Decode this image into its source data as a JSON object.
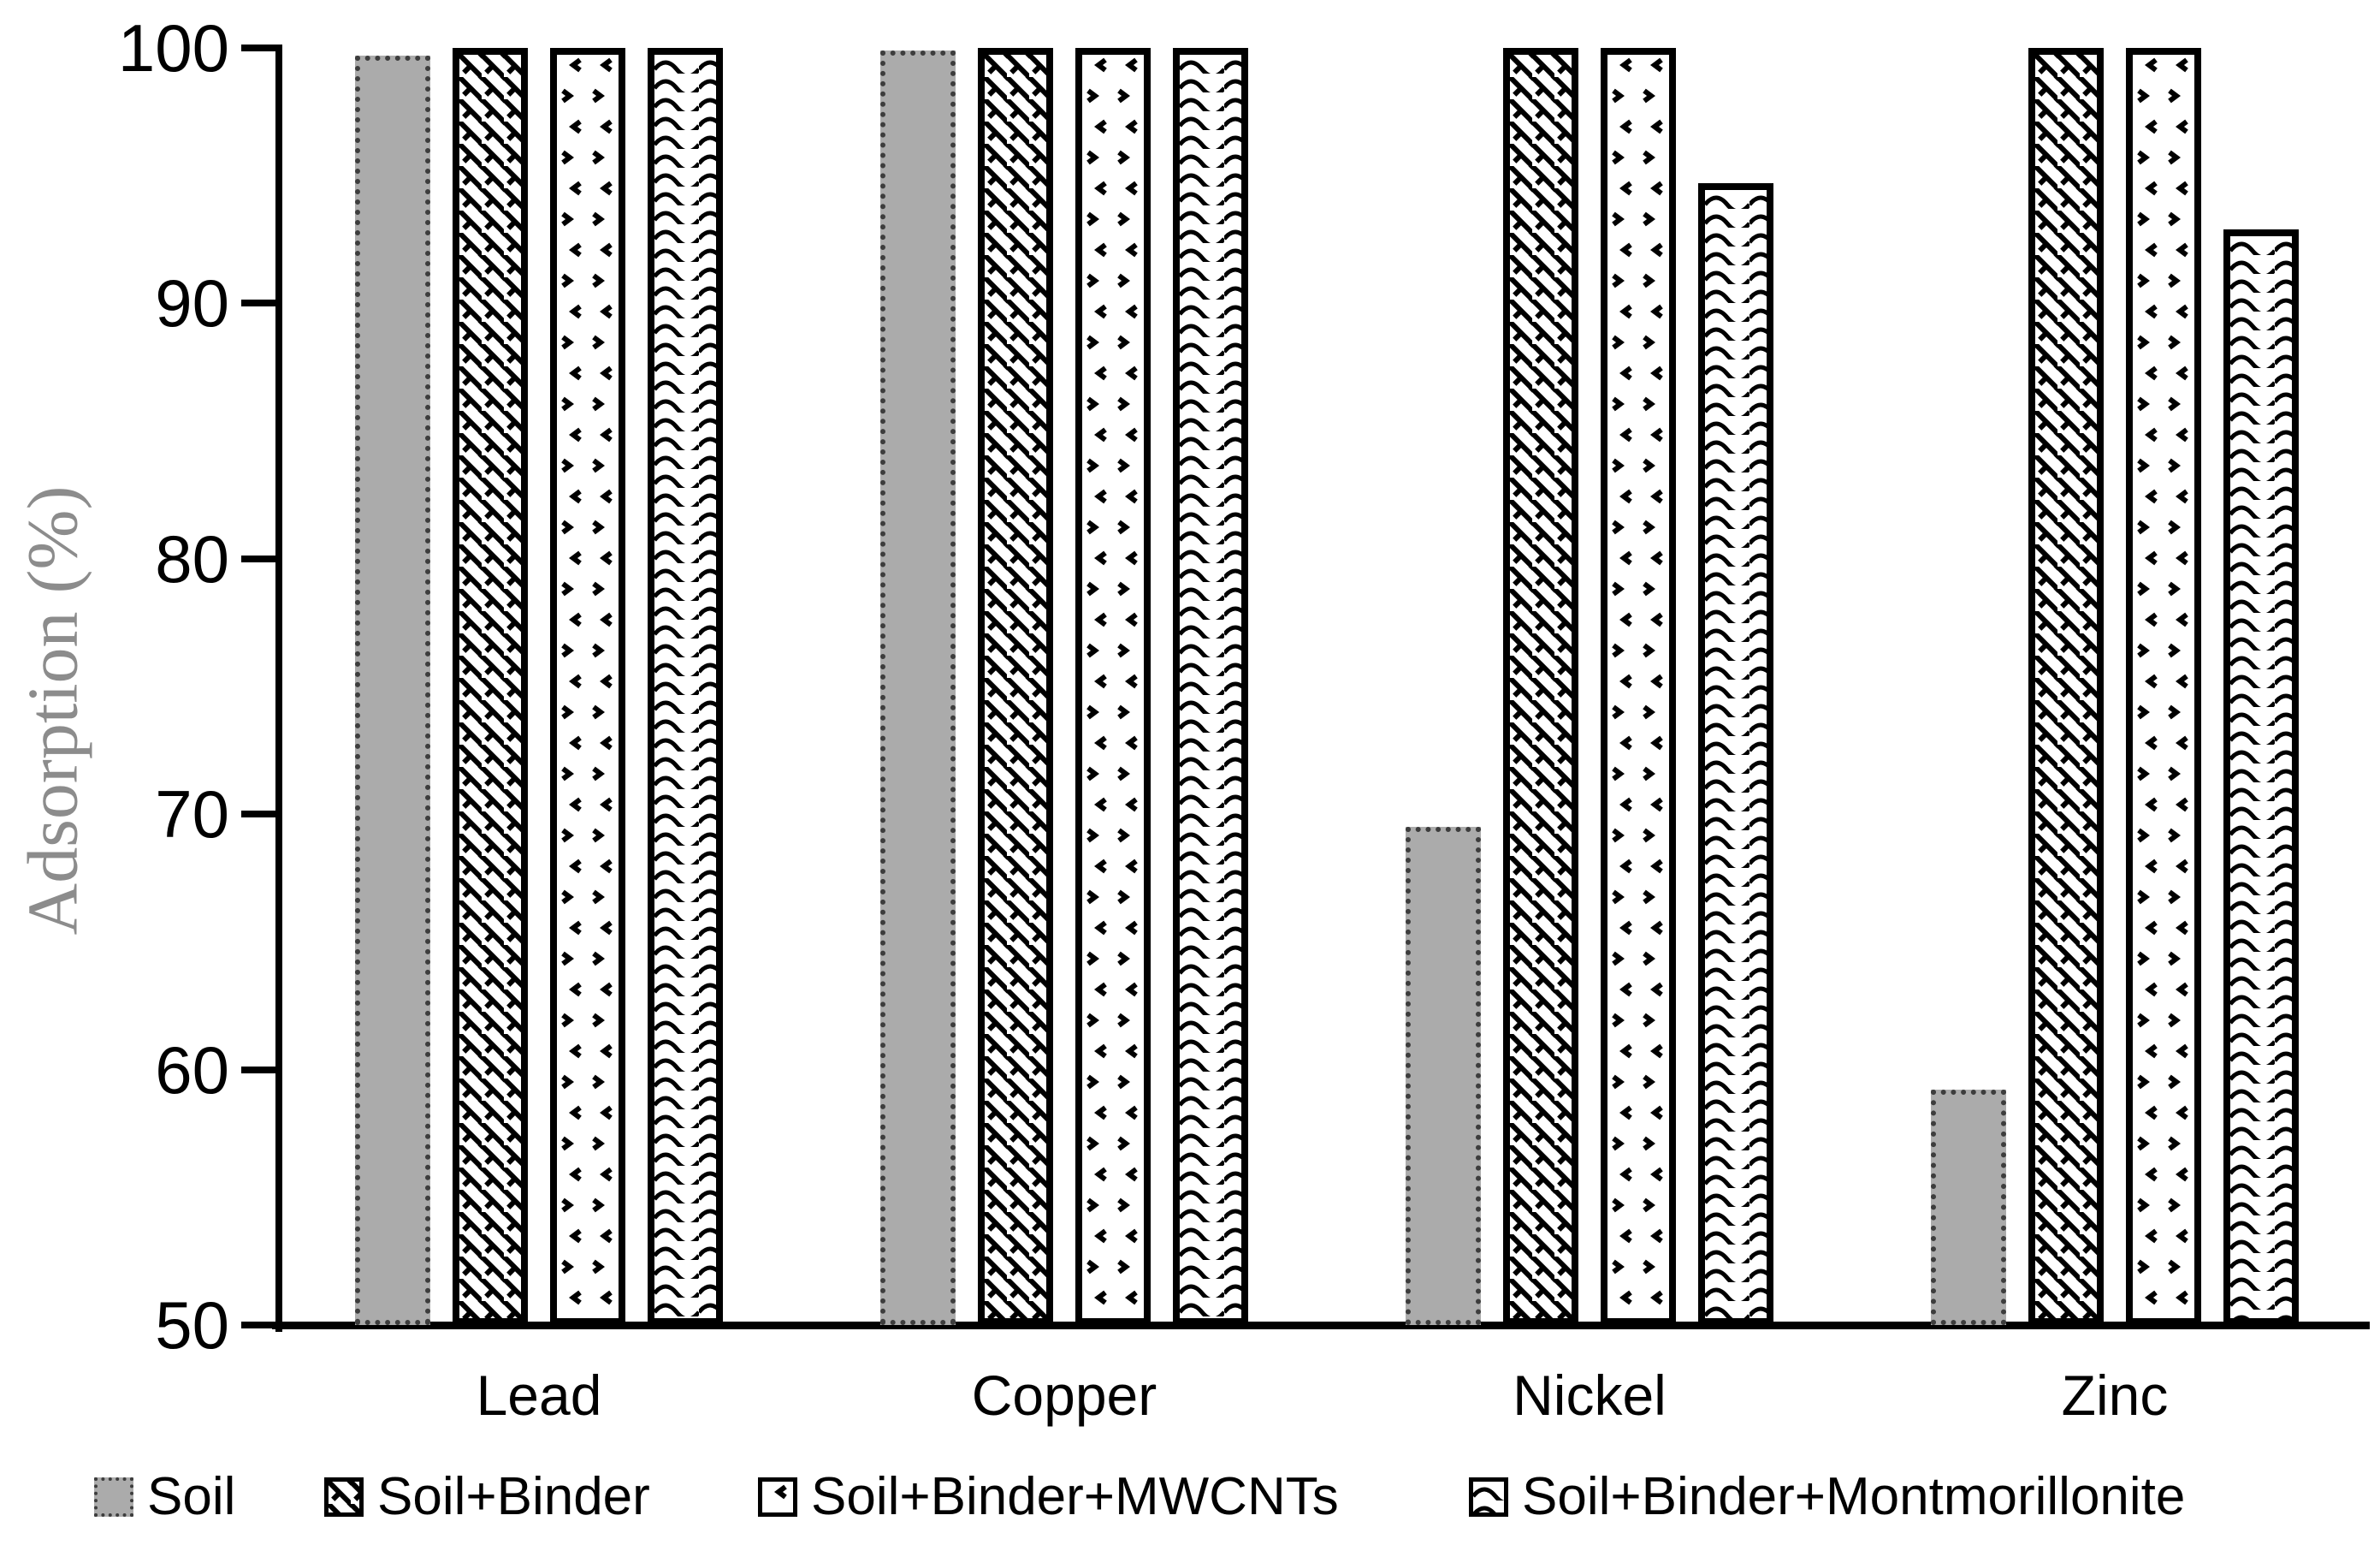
{
  "chart_data": {
    "type": "bar",
    "title": "",
    "ylabel": "Adsorption (%)",
    "xlabel": "",
    "ylim": [
      50,
      100
    ],
    "yticks": [
      100,
      90,
      80,
      70,
      60,
      50
    ],
    "grid": false,
    "legend_position": "bottom",
    "categories": [
      "Lead",
      "Copper",
      "Nickel",
      "Zinc"
    ],
    "series": [
      {
        "name": "Soil",
        "pattern": "solid-gray",
        "values": [
          99.7,
          99.9,
          69.5,
          59.2
        ]
      },
      {
        "name": "Soil+Binder",
        "pattern": "diagonal-weave",
        "values": [
          100,
          100,
          100,
          100
        ]
      },
      {
        "name": "Soil+Binder+MWCNTs",
        "pattern": "sparse-angle-dots",
        "values": [
          100,
          100,
          100,
          100
        ]
      },
      {
        "name": "Soil+Binder+Montmorillonite",
        "pattern": "zigzag-wave",
        "values": [
          100,
          100,
          94.7,
          92.9
        ]
      }
    ],
    "colors": {
      "soil_bar_gray": "#ababab",
      "pattern_black": "#000000",
      "axis_black": "#000000",
      "ytitle_gray": "#8c8c8c"
    }
  }
}
